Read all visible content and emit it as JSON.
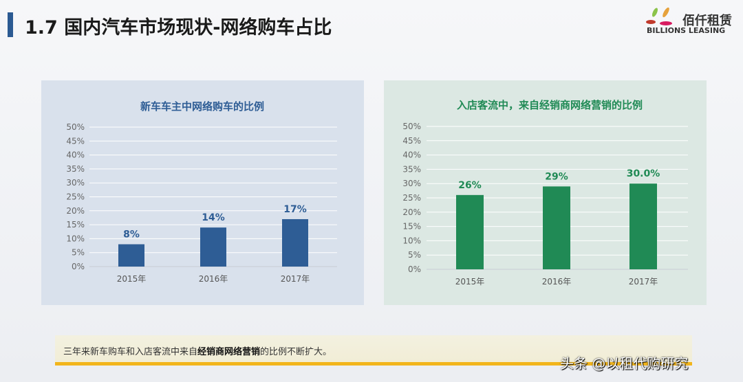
{
  "header": {
    "title": "1.7 国内汽车市场现状-网络购车占比",
    "logo_cn": "佰仟租赁",
    "logo_en": "BILLIONS LEASING"
  },
  "chart_data": [
    {
      "type": "bar",
      "title": "新车车主中网络购车的比例",
      "categories": [
        "2015年",
        "2016年",
        "2017年"
      ],
      "values": [
        8,
        14,
        17
      ],
      "data_labels": [
        "8%",
        "14%",
        "17%"
      ],
      "yticks": [
        "0%",
        "5%",
        "10%",
        "15%",
        "20%",
        "25%",
        "30%",
        "35%",
        "40%",
        "45%",
        "50%"
      ],
      "ylim": [
        0,
        50
      ],
      "grid": true,
      "color": "#2e5d95",
      "title_color": "#2e5d95"
    },
    {
      "type": "bar",
      "title": "入店客流中，来自经销商网络营销的比例",
      "categories": [
        "2015年",
        "2016年",
        "2017年"
      ],
      "values": [
        26,
        29,
        30
      ],
      "data_labels": [
        "26%",
        "29%",
        "30.0%"
      ],
      "yticks": [
        "0%",
        "5%",
        "10%",
        "15%",
        "20%",
        "25%",
        "30%",
        "35%",
        "40%",
        "45%",
        "50%"
      ],
      "ylim": [
        0,
        50
      ],
      "grid": true,
      "color": "#208a55",
      "title_color": "#208a55"
    }
  ],
  "note": {
    "prefix": "三年来新车购车和入店客流中来自",
    "bold": "经销商网络营销",
    "suffix": "的比例不断扩大。"
  },
  "watermark": "头条 @以租代购研究"
}
